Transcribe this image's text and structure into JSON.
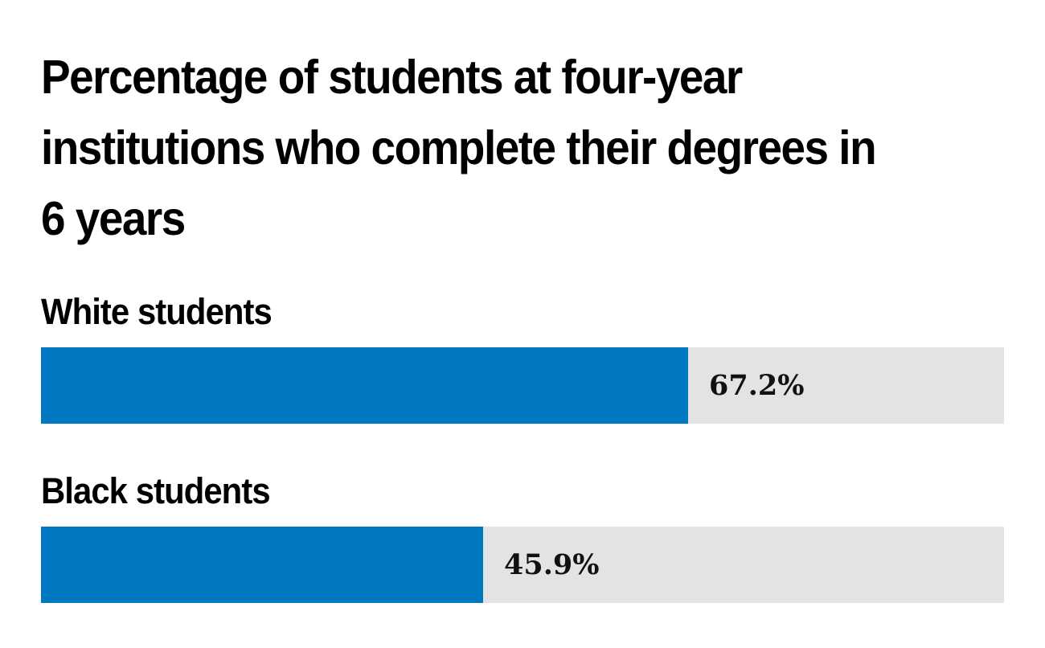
{
  "chart_data": {
    "type": "bar",
    "orientation": "horizontal",
    "title": "Percentage of students at four-year institutions who complete their degrees in 6 years",
    "categories": [
      "White students",
      "Black students"
    ],
    "values": [
      67.2,
      45.9
    ],
    "value_labels": [
      "67.2%",
      "45.9%"
    ],
    "xlim": [
      0,
      100
    ],
    "grid": false,
    "colors": {
      "bar": "#0078c1",
      "track": "#e3e3e3",
      "text": "#000000"
    }
  }
}
